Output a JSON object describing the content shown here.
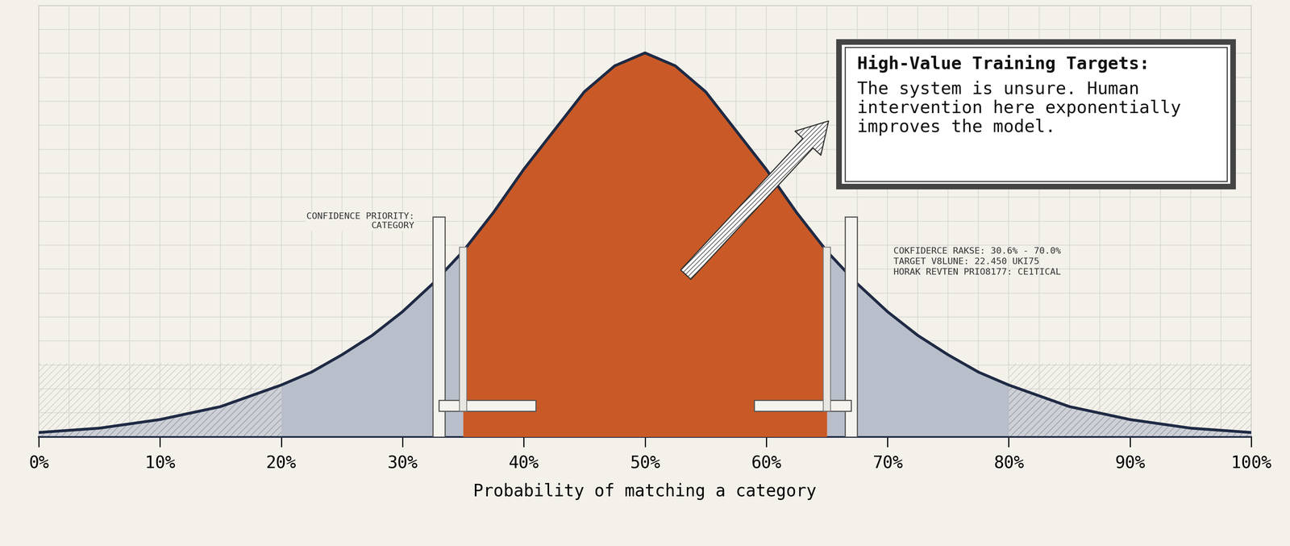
{
  "chart_data": {
    "type": "area",
    "x": [
      0,
      2.5,
      5,
      7.5,
      10,
      12.5,
      15,
      17.5,
      20,
      22.5,
      25,
      27.5,
      30,
      32.5,
      35,
      37.5,
      40,
      42.5,
      45,
      47.5,
      50,
      52.5,
      55,
      57.5,
      60,
      62.5,
      65,
      67.5,
      70,
      72.5,
      75,
      77.5,
      80,
      82.5,
      85,
      87.5,
      90,
      92.5,
      95,
      97.5,
      100
    ],
    "values": [
      1,
      1.5,
      2,
      3,
      4,
      5.5,
      7,
      9.5,
      12,
      15,
      19,
      23.5,
      29,
      35.5,
      43,
      52,
      62,
      71,
      80,
      86,
      89,
      86,
      80,
      71,
      62,
      52,
      43,
      35.5,
      29,
      23.5,
      19,
      15,
      12,
      9.5,
      7,
      5.5,
      4,
      3,
      2,
      1.5,
      1
    ],
    "color": "#1f2a44",
    "xlabel": "Probability of matching a category",
    "xlim": [
      0,
      100
    ],
    "xticks": [
      {
        "value": 0,
        "label": "0%"
      },
      {
        "value": 10,
        "label": "10%"
      },
      {
        "value": 20,
        "label": "20%"
      },
      {
        "value": 30,
        "label": "30%"
      },
      {
        "value": 40,
        "label": "40%"
      },
      {
        "value": 50,
        "label": "50%"
      },
      {
        "value": 60,
        "label": "60%"
      },
      {
        "value": 70,
        "label": "70%"
      },
      {
        "value": 80,
        "label": "80%"
      },
      {
        "value": 90,
        "label": "90%"
      },
      {
        "value": 100,
        "label": "100%"
      }
    ],
    "ylim": [
      0,
      100
    ],
    "tick_labels": "x",
    "grid": true,
    "highlight_range": [
      35,
      65
    ],
    "secondary_range": [
      20,
      80
    ],
    "annotations": {
      "box_title": "High-Value Training Targets:",
      "box_text": "The system is unsure. Human\nintervention here exponentially\nimproves the model.",
      "left_label": "CONFIDENCE PRIORITY:\nCATEGORY",
      "right_label": "COKFIDERCE RAKSE: 30.6% - 70.0%\nTARGET V8LUNE: 22.450 UKI75\nHORAK REVTEN PRIO8177: CE1TICAL"
    }
  }
}
